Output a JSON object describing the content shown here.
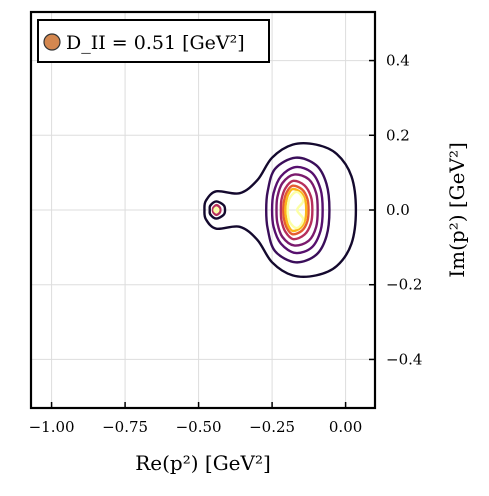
{
  "chart_data": {
    "type": "contour",
    "colormap": "inferno",
    "xlabel": "Re(p²) [GeV²]",
    "ylabel": "Im(p²) [GeV²]",
    "xlim": [
      -1.07,
      0.1
    ],
    "ylim": [
      -0.53,
      0.53
    ],
    "x_ticks": [
      -1.0,
      -0.75,
      -0.5,
      -0.25,
      0.0
    ],
    "x_tick_labels": [
      "−1.00",
      "−0.75",
      "−0.50",
      "−0.25",
      "0.00"
    ],
    "y_ticks": [
      -0.4,
      -0.2,
      0.0,
      0.2,
      0.4
    ],
    "y_tick_labels": [
      "−0.4",
      "−0.2",
      "0.0",
      "0.2",
      "0.4"
    ],
    "y_axis_side": "right",
    "grid": true,
    "legend": {
      "position": "top-left",
      "entries": [
        {
          "label": "D_II = 0.51 [GeV²]",
          "marker": "circle",
          "color": "#d4874f"
        }
      ]
    },
    "features": {
      "pole_left": {
        "re": -0.44,
        "im": 0.0
      },
      "peak": {
        "re": -0.17,
        "im": 0.0
      }
    },
    "contours": [
      {
        "level": 1,
        "color": "#14092e",
        "points": [
          [
            -0.44,
            0.05
          ],
          [
            -0.36,
            0.045
          ],
          [
            -0.3,
            0.08
          ],
          [
            -0.25,
            0.14
          ],
          [
            -0.18,
            0.175
          ],
          [
            -0.1,
            0.175
          ],
          [
            -0.03,
            0.15
          ],
          [
            0.02,
            0.09
          ],
          [
            0.035,
            0.0
          ],
          [
            0.02,
            -0.09
          ],
          [
            -0.03,
            -0.15
          ],
          [
            -0.1,
            -0.175
          ],
          [
            -0.18,
            -0.175
          ],
          [
            -0.25,
            -0.14
          ],
          [
            -0.3,
            -0.08
          ],
          [
            -0.36,
            -0.045
          ],
          [
            -0.44,
            -0.05
          ],
          [
            -0.475,
            -0.025
          ],
          [
            -0.48,
            0.0
          ],
          [
            -0.475,
            0.025
          ]
        ]
      },
      {
        "level": 1,
        "color": "#14092e",
        "points": [
          [
            -0.44,
            0.023
          ],
          [
            -0.415,
            0.013
          ],
          [
            -0.41,
            0.0
          ],
          [
            -0.415,
            -0.013
          ],
          [
            -0.44,
            -0.023
          ],
          [
            -0.46,
            -0.012
          ],
          [
            -0.462,
            0.0
          ],
          [
            -0.46,
            0.012
          ]
        ]
      },
      {
        "level": 2,
        "color": "#3a0e5a",
        "points": [
          [
            -0.17,
            0.14
          ],
          [
            -0.1,
            0.12
          ],
          [
            -0.065,
            0.07
          ],
          [
            -0.055,
            0.0
          ],
          [
            -0.065,
            -0.07
          ],
          [
            -0.1,
            -0.12
          ],
          [
            -0.17,
            -0.14
          ],
          [
            -0.24,
            -0.11
          ],
          [
            -0.265,
            -0.05
          ],
          [
            -0.27,
            0.0
          ],
          [
            -0.265,
            0.05
          ],
          [
            -0.24,
            0.11
          ]
        ]
      },
      {
        "level": 3,
        "color": "#57106e",
        "points": [
          [
            -0.17,
            0.115
          ],
          [
            -0.115,
            0.1
          ],
          [
            -0.085,
            0.055
          ],
          [
            -0.078,
            0.0
          ],
          [
            -0.085,
            -0.055
          ],
          [
            -0.115,
            -0.1
          ],
          [
            -0.17,
            -0.115
          ],
          [
            -0.22,
            -0.09
          ],
          [
            -0.245,
            -0.045
          ],
          [
            -0.25,
            0.0
          ],
          [
            -0.245,
            0.045
          ],
          [
            -0.22,
            0.09
          ]
        ]
      },
      {
        "level": 4,
        "color": "#7b1a6d",
        "points": [
          [
            -0.175,
            0.095
          ],
          [
            -0.125,
            0.082
          ],
          [
            -0.1,
            0.045
          ],
          [
            -0.095,
            0.0
          ],
          [
            -0.1,
            -0.045
          ],
          [
            -0.125,
            -0.082
          ],
          [
            -0.175,
            -0.095
          ],
          [
            -0.215,
            -0.072
          ],
          [
            -0.232,
            -0.035
          ],
          [
            -0.235,
            0.0
          ],
          [
            -0.232,
            0.035
          ],
          [
            -0.215,
            0.072
          ]
        ]
      },
      {
        "level": 5,
        "color": "#b62f5c",
        "points": [
          [
            -0.178,
            0.078
          ],
          [
            -0.14,
            0.066
          ],
          [
            -0.118,
            0.036
          ],
          [
            -0.113,
            0.0
          ],
          [
            -0.118,
            -0.036
          ],
          [
            -0.14,
            -0.066
          ],
          [
            -0.178,
            -0.078
          ],
          [
            -0.205,
            -0.058
          ],
          [
            -0.218,
            -0.028
          ],
          [
            -0.22,
            0.0
          ],
          [
            -0.218,
            0.028
          ],
          [
            -0.205,
            0.058
          ]
        ]
      },
      {
        "level": 6,
        "color": "#e55c30",
        "points": [
          [
            -0.18,
            0.065
          ],
          [
            -0.148,
            0.055
          ],
          [
            -0.13,
            0.03
          ],
          [
            -0.126,
            0.0
          ],
          [
            -0.13,
            -0.03
          ],
          [
            -0.148,
            -0.055
          ],
          [
            -0.18,
            -0.065
          ],
          [
            -0.2,
            -0.048
          ],
          [
            -0.21,
            -0.022
          ],
          [
            -0.212,
            0.0
          ],
          [
            -0.21,
            0.022
          ],
          [
            -0.2,
            0.048
          ]
        ]
      },
      {
        "level": 7,
        "color": "#fbb61a",
        "points": [
          [
            -0.18,
            0.056
          ],
          [
            -0.152,
            0.047
          ],
          [
            -0.137,
            0.025
          ],
          [
            -0.134,
            0.0
          ],
          [
            -0.137,
            -0.025
          ],
          [
            -0.152,
            -0.047
          ],
          [
            -0.18,
            -0.056
          ],
          [
            -0.196,
            -0.04
          ],
          [
            -0.203,
            -0.018
          ],
          [
            -0.205,
            0.0
          ],
          [
            -0.203,
            0.018
          ],
          [
            -0.196,
            0.04
          ]
        ]
      },
      {
        "level": 8,
        "color": "#fcffa4",
        "points": [
          [
            -0.17,
            0.048
          ],
          [
            -0.152,
            0.04
          ],
          [
            -0.145,
            0.022
          ],
          [
            -0.165,
            0.0
          ],
          [
            -0.145,
            -0.022
          ],
          [
            -0.152,
            -0.04
          ],
          [
            -0.17,
            -0.048
          ],
          [
            -0.19,
            -0.032
          ],
          [
            -0.196,
            -0.012
          ],
          [
            -0.197,
            0.0
          ],
          [
            -0.196,
            0.012
          ],
          [
            -0.19,
            0.032
          ]
        ]
      },
      {
        "level": 5,
        "color": "#b62f5c",
        "points": [
          [
            -0.44,
            0.013
          ],
          [
            -0.428,
            0.007
          ],
          [
            -0.426,
            0.0
          ],
          [
            -0.428,
            -0.007
          ],
          [
            -0.44,
            -0.013
          ],
          [
            -0.45,
            -0.006
          ],
          [
            -0.451,
            0.0
          ],
          [
            -0.45,
            0.006
          ]
        ]
      },
      {
        "level": 8,
        "color": "#fcffa4",
        "points": [
          [
            -0.44,
            0.006
          ],
          [
            -0.434,
            0.003
          ],
          [
            -0.433,
            0.0
          ],
          [
            -0.434,
            -0.003
          ],
          [
            -0.44,
            -0.006
          ],
          [
            -0.445,
            -0.003
          ],
          [
            -0.446,
            0.0
          ],
          [
            -0.445,
            0.003
          ]
        ]
      }
    ]
  }
}
